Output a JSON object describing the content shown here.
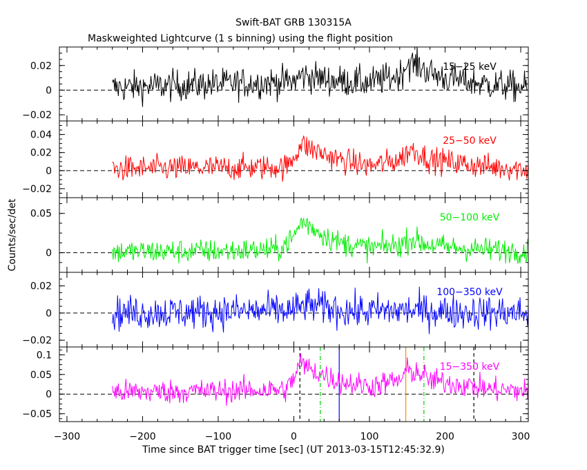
{
  "title": "Swift-BAT GRB 130315A",
  "subtitle": "Maskweighted Lightcurve (1 s binning) using the flight position",
  "xlabel": "Time since BAT trigger time [sec] (UT 2013-03-15T12:45:32.9)",
  "ylabel": "Counts/sec/det",
  "chart_data": {
    "type": "line",
    "x_range": [
      -310,
      310
    ],
    "x_ticks": [
      -300,
      -200,
      -100,
      0,
      100,
      200,
      300
    ],
    "x_tick_labels": [
      "−300",
      "−200",
      "−100",
      "0",
      "100",
      "200",
      "300"
    ],
    "panels": [
      {
        "band": "15−25 keV",
        "color": "#000000",
        "ylim": [
          -0.025,
          0.035
        ],
        "y_ticks": [
          -0.02,
          0,
          0.02
        ],
        "y_tick_labels": [
          "−0.02",
          "0",
          "0.02"
        ],
        "series": {
          "name": "15−25 keV",
          "t_range": [
            -240,
            310
          ],
          "profile_t": [
            -240,
            -150,
            -100,
            -50,
            0,
            10,
            30,
            50,
            100,
            140,
            150,
            165,
            180,
            200,
            250,
            310
          ],
          "profile_y": [
            0.002,
            0.004,
            0.005,
            0.006,
            0.007,
            0.012,
            0.01,
            0.008,
            0.006,
            0.012,
            0.022,
            0.02,
            0.014,
            0.01,
            0.005,
            0.002
          ],
          "noise": 0.009
        }
      },
      {
        "band": "25−50 keV",
        "color": "#ff0000",
        "ylim": [
          -0.03,
          0.055
        ],
        "y_ticks": [
          -0.02,
          0,
          0.02,
          0.04
        ],
        "y_tick_labels": [
          "−0.02",
          "0",
          "0.02",
          "0.04"
        ],
        "series": {
          "name": "25−50 keV",
          "t_range": [
            -240,
            310
          ],
          "profile_t": [
            -240,
            -100,
            -10,
            0,
            10,
            20,
            40,
            60,
            100,
            140,
            155,
            165,
            180,
            220,
            260,
            310
          ],
          "profile_y": [
            0.002,
            0.003,
            0.004,
            0.015,
            0.03,
            0.025,
            0.018,
            0.012,
            0.005,
            0.012,
            0.024,
            0.02,
            0.012,
            0.008,
            0.004,
            0.002
          ],
          "noise": 0.01
        }
      },
      {
        "band": "50−100 keV",
        "color": "#00ee00",
        "ylim": [
          -0.025,
          0.07
        ],
        "y_ticks": [
          0,
          0.05
        ],
        "y_tick_labels": [
          "0",
          "0.05"
        ],
        "series": {
          "name": "50−100 keV",
          "t_range": [
            -240,
            310
          ],
          "profile_t": [
            -240,
            -100,
            -20,
            0,
            10,
            20,
            40,
            60,
            100,
            140,
            155,
            170,
            200,
            250,
            310
          ],
          "profile_y": [
            0.001,
            0.002,
            0.004,
            0.02,
            0.04,
            0.035,
            0.022,
            0.013,
            0.006,
            0.01,
            0.018,
            0.012,
            0.007,
            0.004,
            0.002
          ],
          "noise": 0.011
        }
      },
      {
        "band": "100−350 keV",
        "color": "#0000ff",
        "ylim": [
          -0.025,
          0.03
        ],
        "y_ticks": [
          -0.02,
          0,
          0.02
        ],
        "y_tick_labels": [
          "−0.02",
          "0",
          "0.02"
        ],
        "series": {
          "name": "100−350 keV",
          "t_range": [
            -240,
            310
          ],
          "profile_t": [
            -240,
            -100,
            0,
            15,
            40,
            80,
            150,
            200,
            310
          ],
          "profile_y": [
            0.0,
            0.001,
            0.002,
            0.006,
            0.004,
            0.001,
            0.002,
            0.001,
            0.0
          ],
          "noise": 0.009
        }
      },
      {
        "band": "15−350 keV",
        "color": "#ff00ff",
        "ylim": [
          -0.07,
          0.12
        ],
        "y_ticks": [
          -0.05,
          0,
          0.05,
          0.1
        ],
        "y_tick_labels": [
          "−0.05",
          "0",
          "0.05",
          "0.1"
        ],
        "series": {
          "name": "15−350 keV",
          "t_range": [
            -240,
            310
          ],
          "profile_t": [
            -240,
            -100,
            -10,
            0,
            8,
            20,
            40,
            60,
            100,
            140,
            150,
            165,
            180,
            220,
            260,
            310
          ],
          "profile_y": [
            0.005,
            0.008,
            0.012,
            0.04,
            0.08,
            0.065,
            0.048,
            0.032,
            0.02,
            0.035,
            0.06,
            0.055,
            0.035,
            0.025,
            0.012,
            0.008
          ],
          "noise": 0.022
        },
        "markers": [
          {
            "t": 8,
            "color": "#000000",
            "style": "dash"
          },
          {
            "t": 35,
            "color": "#00cc00",
            "style": "dashdot"
          },
          {
            "t": 60,
            "color": "#0000ff",
            "style": "solid"
          },
          {
            "t": 148,
            "color": "#ff8800",
            "style": "solid"
          },
          {
            "t": 172,
            "color": "#00cc00",
            "style": "dashdot"
          },
          {
            "t": 238,
            "color": "#000000",
            "style": "dash"
          }
        ]
      }
    ]
  }
}
